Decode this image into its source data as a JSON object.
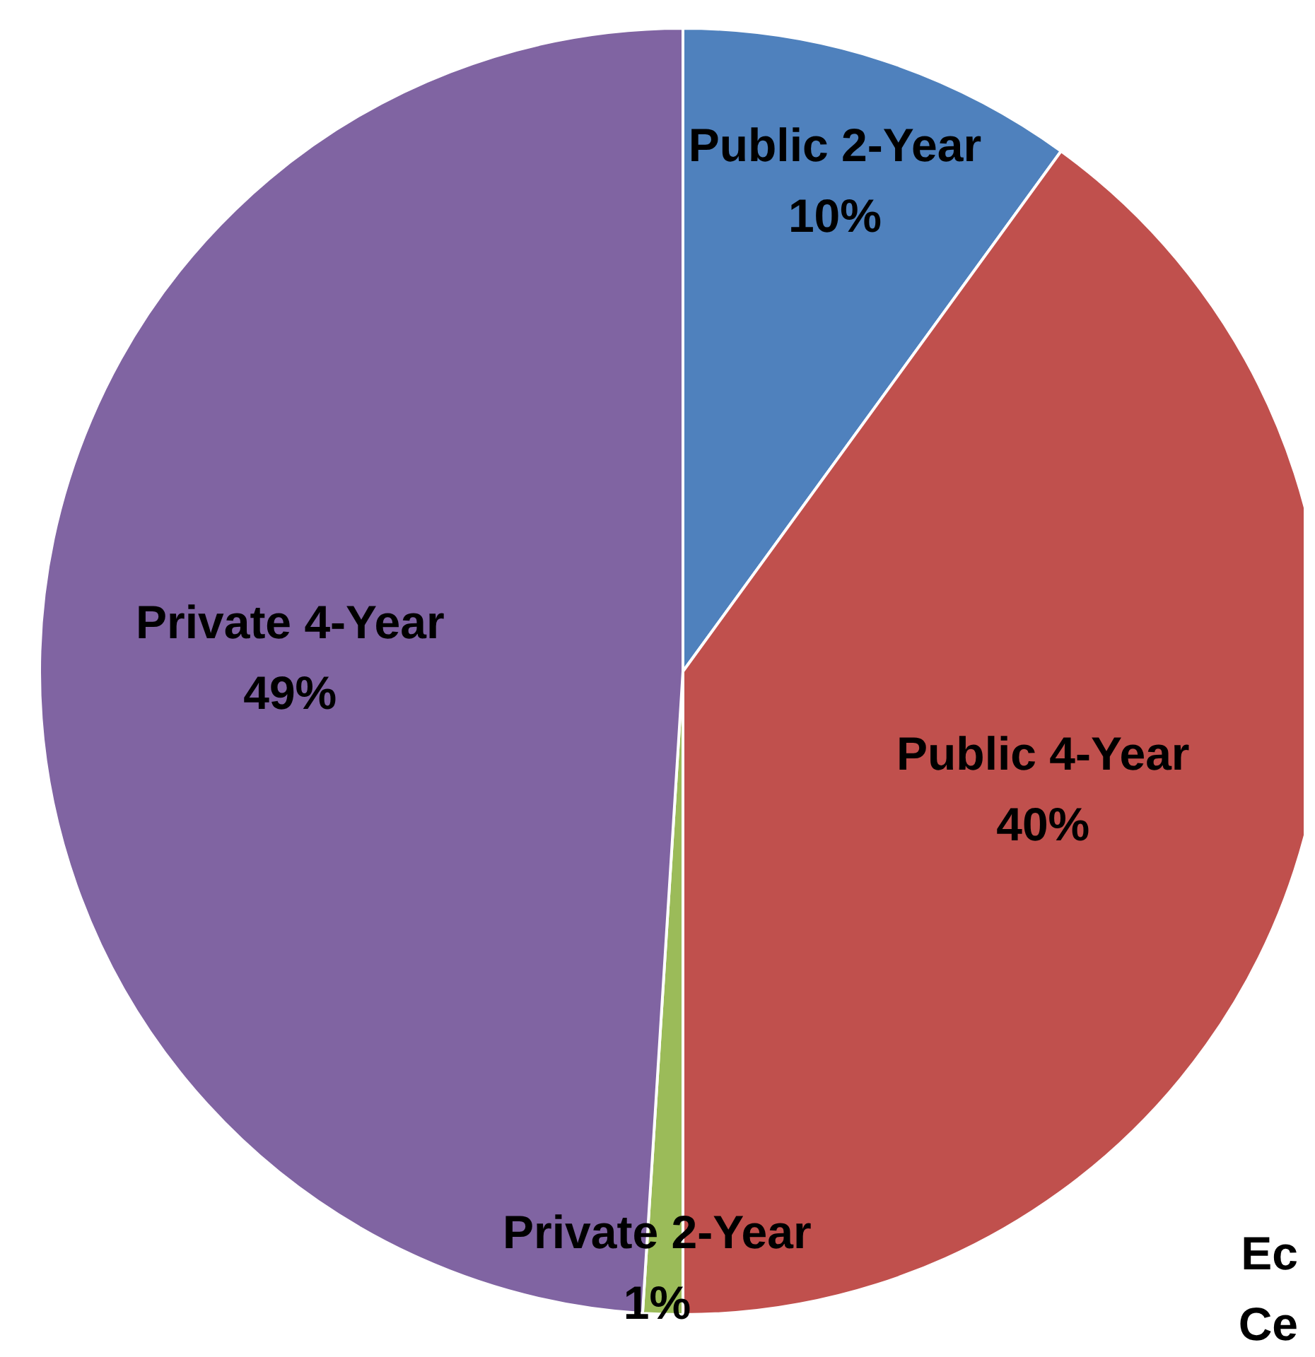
{
  "chart_data": {
    "type": "pie",
    "categories": [
      "Public 2-Year",
      "Public 4-Year",
      "Private 2-Year",
      "Private 4-Year"
    ],
    "values": [
      10,
      40,
      1,
      49
    ],
    "value_labels": [
      "10%",
      "40%",
      "1%",
      "49%"
    ],
    "colors": [
      "#4f81bd",
      "#c0504d",
      "#9bbb59",
      "#8064a2"
    ],
    "annotations": [
      "Ec",
      "Ce"
    ]
  }
}
